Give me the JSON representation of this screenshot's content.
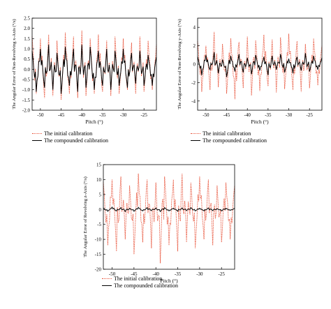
{
  "chart_data": [
    {
      "type": "line",
      "title": "",
      "xlabel": "Pitch (°)",
      "ylabel": "The Angular Error of Non-Revolving x-Axis (°/s)",
      "xlim": [
        -52,
        -22
      ],
      "ylim": [
        -2.0,
        2.5
      ],
      "xticks": [
        "-50",
        "-45",
        "-40",
        "-35",
        "-30",
        "-25"
      ],
      "yticks": [
        "-2.0",
        "-1.5",
        "-1.0",
        "-0.5",
        "0.0",
        "0.5",
        "1.0",
        "1.5",
        "2.0",
        "2.5"
      ],
      "legend": "bottom",
      "series": [
        {
          "name": "The initial calibration",
          "color": "#e8533a",
          "style": "dotted",
          "x": [
            -52,
            -51,
            -50,
            -49,
            -48,
            -47,
            -46,
            -45,
            -44,
            -43,
            -42,
            -41,
            -40,
            -39,
            -38,
            -37,
            -36,
            -35,
            -34,
            -33,
            -32,
            -31,
            -30,
            -29,
            -28,
            -27,
            -26,
            -25,
            -24,
            -23,
            -22
          ],
          "y": [
            1.6,
            -1.2,
            1.5,
            -1.4,
            1.7,
            -1.3,
            1.4,
            -1.5,
            1.8,
            -1.2,
            1.6,
            -1.4,
            1.9,
            -1.3,
            1.5,
            -1.2,
            1.7,
            -1.1,
            1.4,
            -1.3,
            1.6,
            -1.2,
            1.5,
            -1.0,
            1.3,
            -1.2,
            1.6,
            -1.1,
            1.4,
            -1.0,
            1.2
          ]
        },
        {
          "name": "The compounded calibration",
          "color": "#000000",
          "style": "solid",
          "x": [
            -52,
            -51,
            -50,
            -49,
            -48,
            -47,
            -46,
            -45,
            -44,
            -43,
            -42,
            -41,
            -40,
            -39,
            -38,
            -37,
            -36,
            -35,
            -34,
            -33,
            -32,
            -31,
            -30,
            -29,
            -28,
            -27,
            -26,
            -25,
            -24,
            -23,
            -22
          ],
          "y": [
            0.9,
            -1.1,
            1.0,
            -0.9,
            1.2,
            -1.0,
            0.8,
            -1.2,
            1.1,
            -0.8,
            1.0,
            -1.1,
            1.2,
            -0.9,
            1.1,
            -1.0,
            0.9,
            -0.8,
            1.0,
            -1.0,
            0.9,
            -0.8,
            1.0,
            -0.9,
            0.8,
            -0.7,
            0.9,
            -0.8,
            0.7,
            -0.8,
            0.6
          ]
        }
      ]
    },
    {
      "type": "line",
      "title": "",
      "xlabel": "Pitch (°)",
      "ylabel": "The Angular Error of Non-Revolving y-Axis (°/s)",
      "xlim": [
        -52,
        -22
      ],
      "ylim": [
        -5,
        5
      ],
      "xticks": [
        "-50",
        "-45",
        "-40",
        "-35",
        "-30",
        "-25"
      ],
      "yticks": [
        "-4",
        "-2",
        "0",
        "2",
        "4"
      ],
      "legend": "bottom",
      "series": [
        {
          "name": "The initial calibration",
          "color": "#e8533a",
          "style": "dotted",
          "x": [
            -52,
            -51,
            -50,
            -49,
            -48,
            -47,
            -46,
            -45,
            -44,
            -43,
            -42,
            -41,
            -40,
            -39,
            -38,
            -37,
            -36,
            -35,
            -34,
            -33,
            -32,
            -31,
            -30,
            -29,
            -28,
            -27,
            -26,
            -25,
            -24,
            -23,
            -22
          ],
          "y": [
            2.5,
            -3.0,
            2.0,
            -2.8,
            3.5,
            -2.5,
            2.2,
            -3.2,
            2.8,
            -3.8,
            2.4,
            -2.6,
            3.0,
            -3.4,
            2.6,
            -2.9,
            3.2,
            -2.4,
            2.7,
            -3.1,
            2.9,
            -2.7,
            3.3,
            -2.8,
            2.5,
            -3.0,
            2.2,
            -2.6,
            2.8,
            -2.3,
            2.0
          ]
        },
        {
          "name": "The compounded calibration",
          "color": "#000000",
          "style": "solid",
          "x": [
            -52,
            -51,
            -50,
            -49,
            -48,
            -47,
            -46,
            -45,
            -44,
            -43,
            -42,
            -41,
            -40,
            -39,
            -38,
            -37,
            -36,
            -35,
            -34,
            -33,
            -32,
            -31,
            -30,
            -29,
            -28,
            -27,
            -26,
            -25,
            -24,
            -23,
            -22
          ],
          "y": [
            0.8,
            -1.2,
            1.0,
            -0.6,
            1.3,
            -1.0,
            0.5,
            -1.4,
            0.9,
            -0.8,
            1.1,
            -0.9,
            0.7,
            -1.1,
            1.0,
            -0.7,
            0.8,
            -1.2,
            0.9,
            -0.6,
            1.1,
            -0.9,
            0.6,
            -1.0,
            0.8,
            -0.7,
            1.2,
            -0.8,
            0.9,
            -0.6,
            0.7
          ]
        }
      ]
    },
    {
      "type": "line",
      "title": "",
      "xlabel": "Pitch (°)",
      "ylabel": "The Angular Error of Revolving z-Axis (°/s)",
      "xlim": [
        -52,
        -22
      ],
      "ylim": [
        -20,
        15
      ],
      "xticks": [
        "-50",
        "-45",
        "-40",
        "-35",
        "-30",
        "-25"
      ],
      "yticks": [
        "-20",
        "-15",
        "-10",
        "-5",
        "0",
        "5",
        "10",
        "15"
      ],
      "legend": "bottom",
      "series": [
        {
          "name": "The initial calibration",
          "color": "#e8533a",
          "style": "dotted",
          "x": [
            -52,
            -51,
            -50,
            -49,
            -48,
            -47,
            -46,
            -45,
            -44,
            -43,
            -42,
            -41,
            -40,
            -39,
            -38,
            -37,
            -36,
            -35,
            -34,
            -33,
            -32,
            -31,
            -30,
            -29,
            -28,
            -27,
            -26,
            -25,
            -24,
            -23,
            -22
          ],
          "y": [
            9,
            -12,
            10,
            -14,
            11,
            -10,
            8,
            -15,
            12,
            -11,
            10,
            -13,
            9,
            -18,
            11,
            -12,
            10,
            -14,
            12,
            -11,
            9,
            -13,
            11,
            -10,
            10,
            -12,
            8,
            -11,
            9,
            -10,
            8
          ]
        },
        {
          "name": "The compounded calibration",
          "color": "#000000",
          "style": "solid",
          "x": [
            -52,
            -51,
            -50,
            -49,
            -48,
            -47,
            -46,
            -45,
            -44,
            -43,
            -42,
            -41,
            -40,
            -39,
            -38,
            -37,
            -36,
            -35,
            -34,
            -33,
            -32,
            -31,
            -30,
            -29,
            -28,
            -27,
            -26,
            -25,
            -24,
            -23,
            -22
          ],
          "y": [
            0.5,
            -0.6,
            0.8,
            -0.5,
            0.6,
            -0.7,
            0.4,
            -0.6,
            0.7,
            -0.5,
            0.6,
            -0.4,
            0.5,
            -0.7,
            0.6,
            -0.5,
            0.4,
            -0.6,
            0.5,
            -0.4,
            0.6,
            -0.5,
            0.4,
            -0.5,
            0.5,
            -0.4,
            0.3,
            -0.5,
            0.4,
            -0.3,
            0.4
          ]
        }
      ]
    }
  ]
}
